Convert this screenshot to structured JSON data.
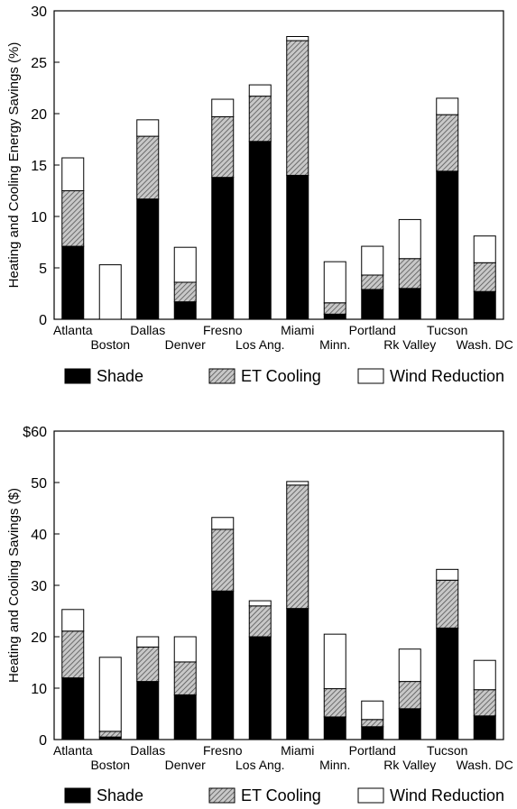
{
  "colors": {
    "shade": "#000000",
    "et_cooling": "#9a9a9a",
    "wind": "#ffffff",
    "axis": "#000000"
  },
  "chart_data": [
    {
      "type": "bar",
      "stacked": true,
      "ylabel": "Heating and Cooling Energy Savings (%)",
      "ylim": [
        0,
        30
      ],
      "yticks": [
        "0",
        "5",
        "10",
        "15",
        "20",
        "25",
        "30"
      ],
      "categories": [
        "Atlanta",
        "Boston",
        "Dallas",
        "Denver",
        "Fresno",
        "Los Ang.",
        "Miami",
        "Minn.",
        "Portland",
        "Rk Valley",
        "Tucson",
        "Wash. DC"
      ],
      "series": [
        {
          "name": "Shade",
          "values": [
            7.1,
            0,
            11.7,
            1.7,
            13.8,
            17.3,
            14.0,
            0.5,
            2.9,
            3.0,
            14.4,
            2.7
          ]
        },
        {
          "name": "ET Cooling",
          "values": [
            5.4,
            0,
            6.1,
            1.9,
            5.9,
            4.4,
            13.1,
            1.1,
            1.4,
            2.9,
            5.5,
            2.8
          ]
        },
        {
          "name": "Wind Reduction",
          "values": [
            3.2,
            5.3,
            1.6,
            3.4,
            1.7,
            1.1,
            0.4,
            4.0,
            2.8,
            3.8,
            1.6,
            2.6
          ]
        }
      ],
      "legend_position": "bottom",
      "grid": false
    },
    {
      "type": "bar",
      "stacked": true,
      "ylabel": "Heating and Cooling Savings ($)",
      "ylim": [
        0,
        60
      ],
      "yticks": [
        "0",
        "10",
        "20",
        "30",
        "40",
        "50",
        "$60"
      ],
      "categories": [
        "Atlanta",
        "Boston",
        "Dallas",
        "Denver",
        "Fresno",
        "Los Ang.",
        "Miami",
        "Minn.",
        "Portland",
        "Rk Valley",
        "Tucson",
        "Wash. DC"
      ],
      "series": [
        {
          "name": "Shade",
          "values": [
            12.0,
            0.5,
            11.3,
            8.7,
            28.9,
            20.0,
            25.5,
            4.4,
            2.5,
            6.0,
            21.7,
            4.6
          ]
        },
        {
          "name": "ET Cooling",
          "values": [
            9.1,
            1.1,
            6.7,
            6.4,
            12.0,
            6.0,
            24.0,
            5.5,
            1.4,
            5.3,
            9.3,
            5.1
          ]
        },
        {
          "name": "Wind Reduction",
          "values": [
            4.2,
            14.4,
            2.0,
            4.9,
            2.3,
            1.0,
            0.7,
            10.6,
            3.6,
            6.3,
            2.1,
            5.7
          ]
        }
      ],
      "legend_position": "bottom",
      "grid": false
    }
  ]
}
